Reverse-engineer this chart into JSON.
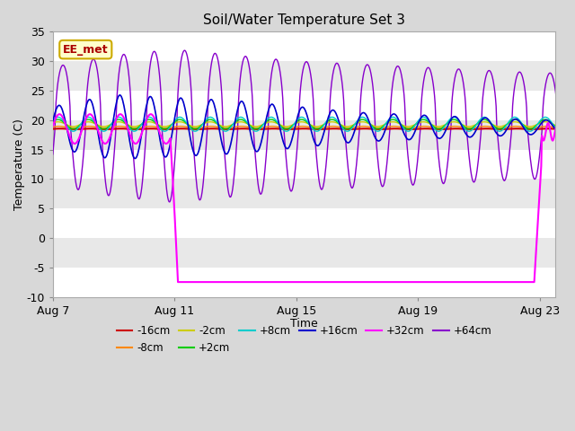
{
  "title": "Soil/Water Temperature Set 3",
  "xlabel": "Time",
  "ylabel": "Temperature (C)",
  "ylim": [
    -10,
    35
  ],
  "xlim": [
    0,
    16.5
  ],
  "x_ticks": [
    0,
    4,
    8,
    12,
    16
  ],
  "x_tick_labels": [
    "Aug 7",
    "Aug 11",
    "Aug 15",
    "Aug 19",
    "Aug 23"
  ],
  "background_color": "#d8d8d8",
  "plot_bg_color": "#e0e0e0",
  "label_box_text": "EE_met",
  "label_box_bg": "#ffffcc",
  "label_box_edge": "#ccaa00",
  "label_box_text_color": "#aa0000",
  "series_colors": {
    "-16cm": "#cc0000",
    "-8cm": "#ff8800",
    "-2cm": "#cccc00",
    "+2cm": "#00cc00",
    "+8cm": "#00cccc",
    "+16cm": "#0000cc",
    "+32cm": "#ff00ff",
    "+64cm": "#8800cc"
  },
  "legend_labels": [
    "-16cm",
    "-8cm",
    "-2cm",
    "+2cm",
    "+8cm",
    "+16cm",
    "+32cm",
    "+64cm"
  ]
}
